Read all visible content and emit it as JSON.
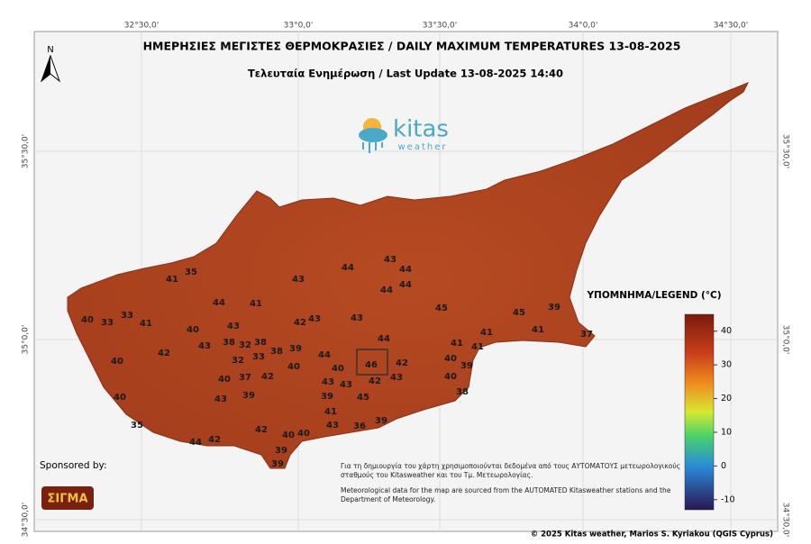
{
  "header": {
    "title": "ΗΜΕΡΗΣΙΕΣ ΜΕΓΙΣΤΕΣ ΘΕΡΜΟΚΡΑΣΙΕΣ / DAILY MAXIMUM TEMPERATURES 13-08-2025",
    "subtitle": "Τελευταία Ενημέρωση / Last Update 13-08-2025 14:40"
  },
  "logo": {
    "name": "kitas",
    "sub": "weather"
  },
  "north": "N",
  "longitudes": [
    "32°30,0'",
    "33°0,0'",
    "33°30,0'",
    "34°0,0'",
    "34°30,0'"
  ],
  "latitudes": [
    "35°30,0'",
    "35°0,0'",
    "34°30,0'"
  ],
  "stations": [
    35,
    41,
    40,
    33,
    33,
    41,
    44,
    41,
    43,
    44,
    43,
    44,
    44,
    44,
    40,
    43,
    42,
    43,
    43,
    45,
    45,
    39,
    41,
    37,
    43,
    38,
    32,
    38,
    42,
    32,
    33,
    38,
    39,
    44,
    44,
    41,
    41,
    41,
    40,
    40,
    40,
    46,
    42,
    43,
    40,
    39,
    40,
    37,
    42,
    43,
    43,
    42,
    40,
    38,
    40,
    43,
    39,
    39,
    45,
    41,
    35,
    43,
    36,
    39,
    42,
    40,
    40,
    44,
    42,
    39,
    39
  ],
  "legend": {
    "title": "ΥΠΟΜΝΗΜΑ/LEGEND (°C)",
    "lim": [
      -13,
      45
    ],
    "ticks": [
      40,
      30,
      20,
      10,
      0,
      -10
    ]
  },
  "sponsor": {
    "label": "Sponsored by:",
    "name": "ΣΙΓΜΑ"
  },
  "notes": [
    "Για τη δημιουργία του χάρτη χρησιμοποιούνται δεδομένα από τους ΑΥΤΟΜΑΤΟΥΣ μετεωρολογικούς",
    "σταθμούς του Kitasweather και του Τμ. Μετεωρολογίας.",
    "Meteorological data for the map are sourced from the AUTOMATED Kitasweather stations and the",
    "Department of Meteorology."
  ],
  "copyright": "© 2025 Kitas weather, Marios S. Kyriakou (QGIS Cyprus)"
}
